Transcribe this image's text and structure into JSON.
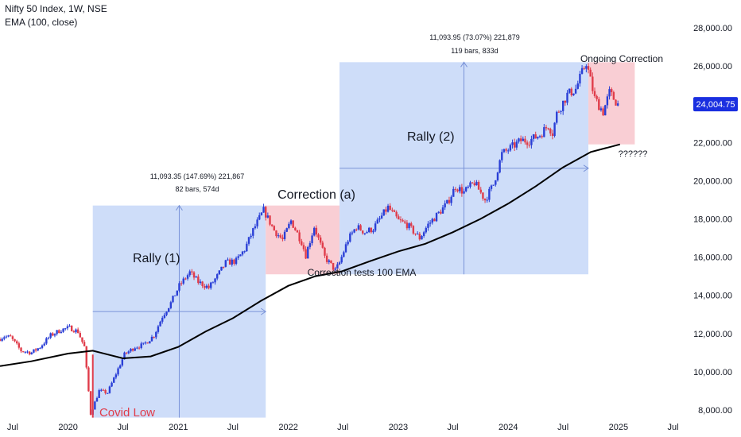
{
  "header": {
    "title": "Nifty 50 Index, 1W, NSE",
    "ema_label": "EMA (100, close)"
  },
  "colors": {
    "up_candle": "#2a3fd6",
    "down_candle": "#e03c4a",
    "ema_line": "#000000",
    "rally_box": "#c9d9f8",
    "correction_box": "#f8c9cf",
    "price_badge": "#1a2fe0",
    "covid_label": "#e03c4a"
  },
  "chart_data": {
    "type": "candlestick",
    "title": "Nifty 50 Index, 1W, NSE",
    "ylim": [
      7500,
      28500
    ],
    "y_ticks": [
      8000,
      10000,
      12000,
      14000,
      16000,
      18000,
      20000,
      22000,
      24000,
      26000,
      28000
    ],
    "y_tick_labels": [
      "8,000.00",
      "10,000.00",
      "12,000.00",
      "14,000.00",
      "16,000.00",
      "18,000.00",
      "20,000.00",
      "22,000.00",
      "24,000.00",
      "26,000.00",
      "28,000.00"
    ],
    "x_tick_labels": [
      "Jul",
      "2020",
      "Jul",
      "2021",
      "Jul",
      "2022",
      "Jul",
      "2023",
      "Jul",
      "2024",
      "Jul",
      "2025",
      "Jul"
    ],
    "x_tick_dates": [
      "2019-07-01",
      "2020-01-01",
      "2020-07-01",
      "2021-01-01",
      "2021-07-01",
      "2022-01-01",
      "2022-07-01",
      "2023-01-01",
      "2023-07-01",
      "2024-01-01",
      "2024-07-01",
      "2025-01-01",
      "2025-07-01"
    ],
    "x_range": [
      "2019-05-20",
      "2025-09-01"
    ],
    "last_price": "24,004.75",
    "last_price_value": 24004.75,
    "price_path": [
      [
        "2019-05-20",
        11700
      ],
      [
        "2019-06-10",
        11850
      ],
      [
        "2019-07-01",
        11800
      ],
      [
        "2019-08-05",
        11100
      ],
      [
        "2019-09-09",
        11000
      ],
      [
        "2019-10-07",
        11300
      ],
      [
        "2019-11-11",
        11900
      ],
      [
        "2019-12-16",
        12200
      ],
      [
        "2020-01-13",
        12300
      ],
      [
        "2020-02-10",
        12100
      ],
      [
        "2020-03-02",
        11300
      ],
      [
        "2020-03-23",
        7800
      ],
      [
        "2020-04-20",
        9000
      ],
      [
        "2020-05-18",
        8900
      ],
      [
        "2020-06-15",
        9900
      ],
      [
        "2020-07-13",
        10900
      ],
      [
        "2020-08-17",
        11300
      ],
      [
        "2020-09-14",
        11400
      ],
      [
        "2020-10-19",
        11900
      ],
      [
        "2020-11-16",
        12900
      ],
      [
        "2020-12-14",
        13600
      ],
      [
        "2021-01-11",
        14500
      ],
      [
        "2021-02-15",
        15200
      ],
      [
        "2021-03-15",
        14700
      ],
      [
        "2021-04-19",
        14400
      ],
      [
        "2021-05-17",
        15000
      ],
      [
        "2021-06-14",
        15700
      ],
      [
        "2021-07-19",
        15800
      ],
      [
        "2021-08-16",
        16400
      ],
      [
        "2021-09-13",
        17400
      ],
      [
        "2021-10-18",
        18450
      ],
      [
        "2021-11-22",
        17400
      ],
      [
        "2021-12-20",
        16900
      ],
      [
        "2022-01-17",
        17900
      ],
      [
        "2022-02-21",
        16800
      ],
      [
        "2022-03-07",
        16100
      ],
      [
        "2022-04-04",
        17600
      ],
      [
        "2022-05-09",
        16000
      ],
      [
        "2022-06-13",
        15300
      ],
      [
        "2022-06-27",
        15700
      ],
      [
        "2022-07-25",
        16900
      ],
      [
        "2022-08-22",
        17600
      ],
      [
        "2022-09-19",
        17300
      ],
      [
        "2022-10-17",
        17500
      ],
      [
        "2022-11-21",
        18300
      ],
      [
        "2022-12-05",
        18600
      ],
      [
        "2023-01-09",
        17900
      ],
      [
        "2023-02-06",
        17700
      ],
      [
        "2023-03-20",
        17000
      ],
      [
        "2023-04-17",
        17700
      ],
      [
        "2023-05-22",
        18300
      ],
      [
        "2023-06-19",
        18800
      ],
      [
        "2023-07-17",
        19700
      ],
      [
        "2023-08-14",
        19400
      ],
      [
        "2023-09-18",
        19900
      ],
      [
        "2023-10-23",
        19000
      ],
      [
        "2023-11-20",
        19800
      ],
      [
        "2023-12-18",
        21400
      ],
      [
        "2024-01-15",
        21700
      ],
      [
        "2024-02-19",
        22100
      ],
      [
        "2024-03-18",
        22100
      ],
      [
        "2024-04-22",
        22400
      ],
      [
        "2024-05-20",
        22900
      ],
      [
        "2024-06-03",
        22500
      ],
      [
        "2024-06-17",
        23500
      ],
      [
        "2024-07-22",
        24500
      ],
      [
        "2024-08-19",
        24800
      ],
      [
        "2024-09-23",
        26200
      ],
      [
        "2024-10-21",
        24300
      ],
      [
        "2024-11-18",
        23600
      ],
      [
        "2024-12-09",
        24600
      ],
      [
        "2025-01-06",
        24004.75
      ]
    ],
    "ema_100": [
      [
        "2019-05-20",
        10300
      ],
      [
        "2019-09-01",
        10550
      ],
      [
        "2020-01-01",
        10950
      ],
      [
        "2020-03-23",
        11100
      ],
      [
        "2020-07-01",
        10700
      ],
      [
        "2020-10-01",
        10800
      ],
      [
        "2021-01-01",
        11300
      ],
      [
        "2021-04-01",
        12100
      ],
      [
        "2021-07-01",
        12800
      ],
      [
        "2021-10-01",
        13700
      ],
      [
        "2022-01-01",
        14500
      ],
      [
        "2022-04-01",
        15000
      ],
      [
        "2022-06-27",
        15250
      ],
      [
        "2022-10-01",
        15800
      ],
      [
        "2023-01-01",
        16300
      ],
      [
        "2023-04-01",
        16700
      ],
      [
        "2023-07-01",
        17300
      ],
      [
        "2023-10-01",
        18000
      ],
      [
        "2024-01-01",
        18800
      ],
      [
        "2024-04-01",
        19700
      ],
      [
        "2024-07-01",
        20700
      ],
      [
        "2024-10-01",
        21500
      ],
      [
        "2025-01-06",
        21900
      ]
    ],
    "boxes": [
      {
        "kind": "rally",
        "x0": "2020-03-23",
        "x1": "2021-10-18",
        "y0": 7600,
        "y1": 18700
      },
      {
        "kind": "correction",
        "x0": "2021-10-18",
        "x1": "2022-06-20",
        "y0": 15100,
        "y1": 18700
      },
      {
        "kind": "rally",
        "x0": "2022-06-20",
        "x1": "2024-09-23",
        "y0": 15100,
        "y1": 26200
      },
      {
        "kind": "correction",
        "x0": "2024-09-23",
        "x1": "2025-02-24",
        "y0": 21900,
        "y1": 26200
      }
    ],
    "annotations": {
      "rally1_label": "Rally (1)",
      "rally1_stats": "11,093.35 (147.69%) 221,867",
      "rally1_bars": "82 bars, 574d",
      "correction_a": "Correction (a)",
      "correction_tests": "Correction tests 100 EMA",
      "rally2_label": "Rally (2)",
      "rally2_stats": "11,093.95 (73.07%) 221,879",
      "rally2_bars": "119 bars, 833d",
      "ongoing": "Ongoing Correction",
      "question": "??????",
      "covid_low": "Covid Low"
    }
  }
}
